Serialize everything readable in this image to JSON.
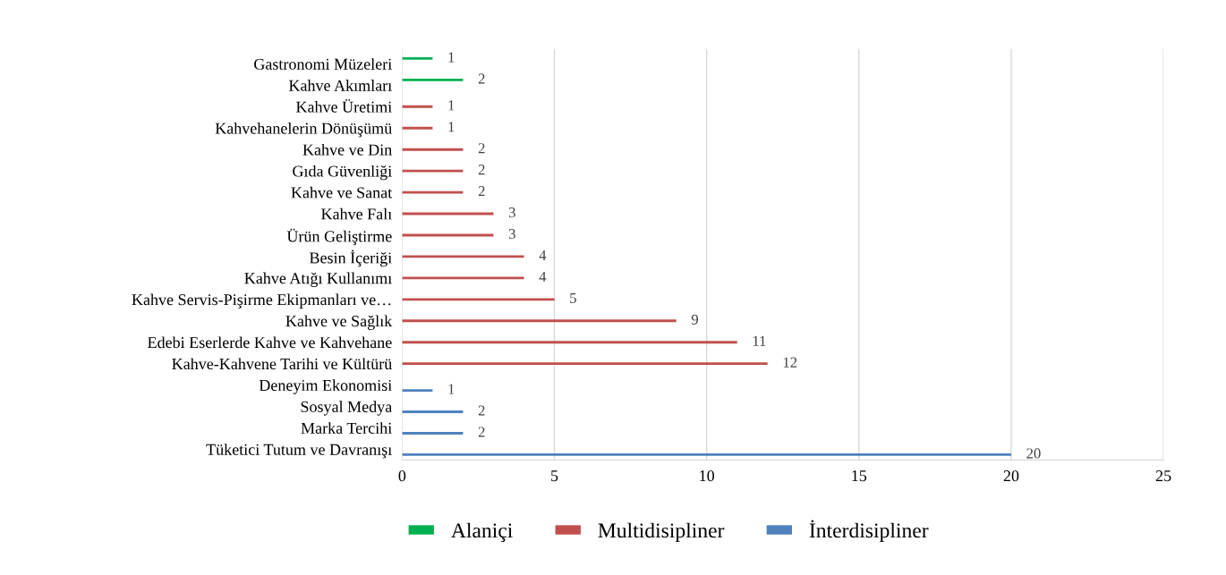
{
  "chart_data": {
    "type": "bar",
    "orientation": "horizontal",
    "categories": [
      "Gastronomi Müzeleri",
      "Kahve Akımları",
      "Kahve Üretimi",
      "Kahvehanelerin Dönüşümü",
      "Kahve ve Din",
      "Gıda Güvenliği",
      "Kahve ve Sanat",
      "Kahve Falı",
      "Ürün Geliştirme",
      "Besin İçeriği",
      "Kahve Atığı Kullanımı",
      "Kahve Servis-Pişirme Ekipmanları ve…",
      "Kahve ve Sağlık",
      "Edebi Eserlerde Kahve ve Kahvehane",
      "Kahve-Kahvene Tarihi ve Kültürü",
      "Deneyim Ekonomisi",
      "Sosyal Medya",
      "Marka Tercihi",
      "Tüketici Tutum ve Davranışı"
    ],
    "series": [
      {
        "name": "Alaniçi",
        "color": "#00b050",
        "values": [
          1,
          2,
          null,
          null,
          null,
          null,
          null,
          null,
          null,
          null,
          null,
          null,
          null,
          null,
          null,
          null,
          null,
          null,
          null
        ]
      },
      {
        "name": "Multidisipliner",
        "color": "#c0504d",
        "values": [
          null,
          null,
          1,
          1,
          2,
          2,
          2,
          3,
          3,
          4,
          4,
          5,
          9,
          11,
          12,
          null,
          null,
          null,
          null
        ]
      },
      {
        "name": "İnterdisipliner",
        "color": "#4f81bd",
        "values": [
          null,
          null,
          null,
          null,
          null,
          null,
          null,
          null,
          null,
          null,
          null,
          null,
          null,
          null,
          null,
          1,
          2,
          2,
          20
        ]
      }
    ],
    "xlim": [
      0,
      25
    ],
    "xticks": [
      0,
      5,
      10,
      15,
      20,
      25
    ],
    "grid": "x",
    "legend": "bottom",
    "data_labels": true
  }
}
